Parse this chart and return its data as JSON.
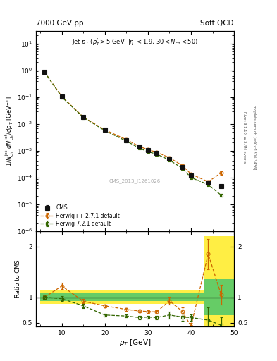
{
  "title_left": "7000 GeV pp",
  "title_right": "Soft QCD",
  "watermark": "CMS_2013_I1261026",
  "right_label1": "Rivet 3.1.10, ≥ 3.4M events",
  "right_label2": "mcplots.cern.ch [arXiv:1306.3436]",
  "cms_pt": [
    6,
    10,
    15,
    20,
    25,
    28,
    30,
    32,
    35,
    38,
    40,
    44,
    47
  ],
  "cms_y": [
    0.85,
    0.105,
    0.018,
    0.006,
    0.0025,
    0.0014,
    0.00105,
    0.00085,
    0.00052,
    0.00025,
    0.00012,
    6.5e-05,
    4.8e-05
  ],
  "cms_yerr": [
    0.04,
    0.005,
    0.001,
    0.0003,
    0.00012,
    7e-05,
    5e-05,
    4e-05,
    2.5e-05,
    1.5e-05,
    8e-06,
    5e-06,
    4e-06
  ],
  "herwig271_pt": [
    6,
    10,
    15,
    20,
    25,
    28,
    30,
    32,
    35,
    38,
    40,
    44,
    47
  ],
  "herwig271_y": [
    0.85,
    0.105,
    0.018,
    0.006,
    0.0026,
    0.00145,
    0.0011,
    0.00088,
    0.00055,
    0.00028,
    0.000135,
    7e-05,
    0.00015
  ],
  "herwig271_yerr": [
    0.04,
    0.005,
    0.001,
    0.0003,
    0.00012,
    7e-05,
    5.5e-05,
    4.5e-05,
    2.8e-05,
    1.6e-05,
    1e-05,
    6e-06,
    2e-05
  ],
  "herwig721_pt": [
    6,
    10,
    15,
    20,
    25,
    28,
    30,
    32,
    35,
    38,
    40,
    44,
    47
  ],
  "herwig721_y": [
    0.85,
    0.1,
    0.0175,
    0.0056,
    0.0023,
    0.00125,
    0.00092,
    0.00075,
    0.00045,
    0.00022,
    0.0001,
    5.5e-05,
    2.2e-05
  ],
  "herwig721_yerr": [
    0.04,
    0.005,
    0.001,
    0.0003,
    0.00012,
    7e-05,
    4.6e-05,
    3.8e-05,
    2.3e-05,
    1.3e-05,
    8e-06,
    5e-06,
    3e-06
  ],
  "ratio271_pt": [
    6,
    10,
    15,
    20,
    25,
    28,
    30,
    32,
    35,
    38,
    40,
    44,
    47
  ],
  "ratio271_y": [
    1.0,
    1.22,
    0.92,
    0.83,
    0.76,
    0.73,
    0.72,
    0.71,
    0.93,
    0.72,
    0.43,
    1.85,
    1.05
  ],
  "ratio271_yerr": [
    0.04,
    0.06,
    0.04,
    0.03,
    0.03,
    0.03,
    0.03,
    0.035,
    0.08,
    0.08,
    0.07,
    0.3,
    0.2
  ],
  "ratio721_pt": [
    6,
    10,
    15,
    20,
    25,
    28,
    30,
    32,
    35,
    38,
    40,
    44,
    47
  ],
  "ratio721_y": [
    1.0,
    0.97,
    0.83,
    0.65,
    0.63,
    0.6,
    0.61,
    0.6,
    0.65,
    0.61,
    0.6,
    0.55,
    0.45
  ],
  "ratio721_yerr": [
    0.04,
    0.05,
    0.04,
    0.03,
    0.03,
    0.03,
    0.03,
    0.033,
    0.07,
    0.07,
    0.065,
    0.25,
    0.15
  ],
  "band_edges": [
    5,
    15,
    25,
    35,
    43,
    50
  ],
  "yellow_lo": [
    0.87,
    0.87,
    0.87,
    0.87,
    0.42,
    0.42
  ],
  "yellow_hi": [
    1.13,
    1.13,
    1.13,
    1.13,
    2.2,
    2.2
  ],
  "green_lo": [
    0.92,
    0.92,
    0.92,
    0.92,
    0.65,
    0.65
  ],
  "green_hi": [
    1.08,
    1.08,
    1.08,
    1.08,
    1.35,
    1.35
  ],
  "color_herwig271": "#cc6600",
  "color_herwig721": "#336600",
  "color_cms": "#111111",
  "color_yellow": "#ffee44",
  "color_green": "#66cc66",
  "ylim_main": [
    1e-06,
    30
  ],
  "ylim_ratio": [
    0.42,
    2.3
  ],
  "xlim": [
    4,
    50
  ]
}
